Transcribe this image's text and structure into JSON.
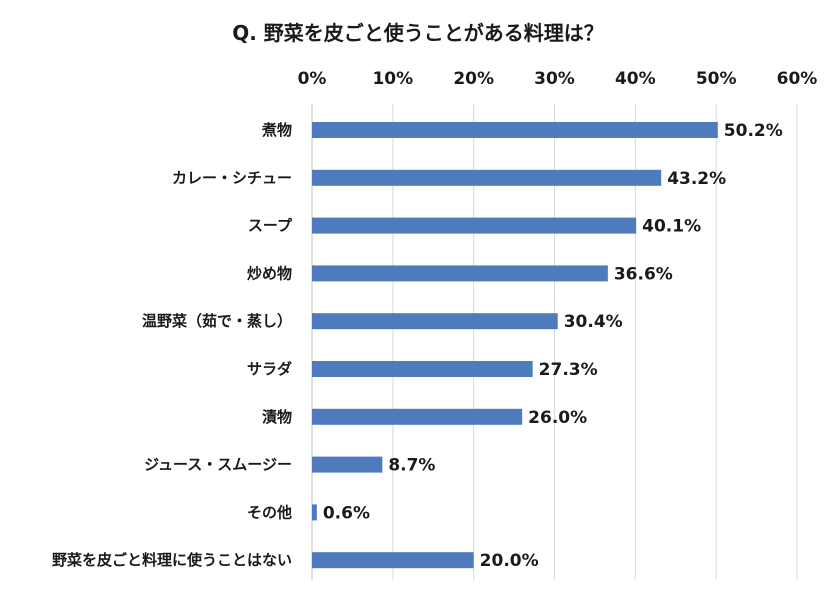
{
  "chart_data": {
    "type": "bar",
    "orientation": "horizontal",
    "title": "Q. 野菜を皮ごと使うことがある料理は？",
    "xlim": [
      0,
      60
    ],
    "xticks": [
      0,
      10,
      20,
      30,
      40,
      50,
      60
    ],
    "xtick_labels": [
      "0%",
      "10%",
      "20%",
      "30%",
      "40%",
      "50%",
      "60%"
    ],
    "axis_position": "top",
    "grid": true,
    "bar_color": "#4f7bbd",
    "categories": [
      "煮物",
      "カレー・シチュー",
      "スープ",
      "炒め物",
      "温野菜（茹で・蒸し）",
      "サラダ",
      "漬物",
      "ジュース・スムージー",
      "その他",
      "野菜を皮ごと料理に使うことはない"
    ],
    "values": [
      50.2,
      43.2,
      40.1,
      36.6,
      30.4,
      27.3,
      26.0,
      8.7,
      0.6,
      20.0
    ],
    "value_labels": [
      "50.2%",
      "43.2%",
      "40.1%",
      "36.6%",
      "30.4%",
      "27.3%",
      "26.0%",
      "8.7%",
      "0.6%",
      "20.0%"
    ]
  }
}
